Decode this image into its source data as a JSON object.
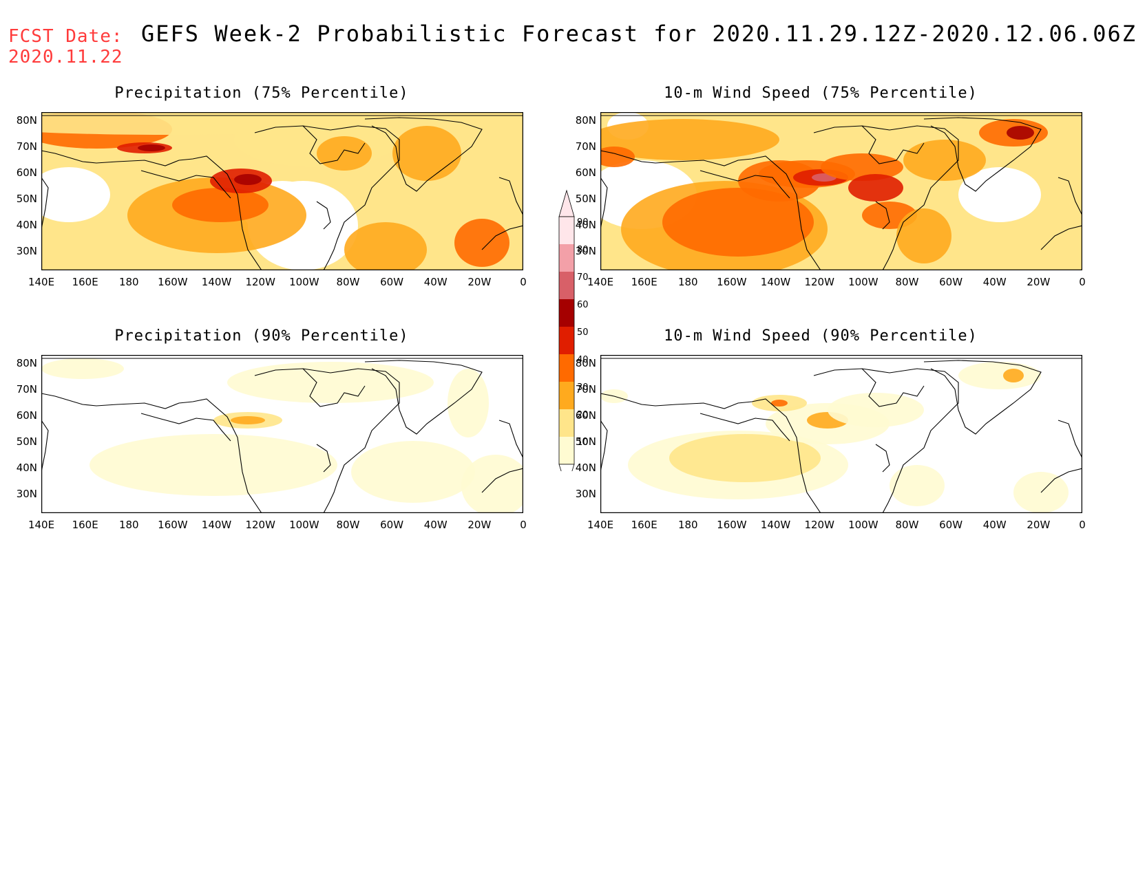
{
  "header": {
    "fcst_label": "FCST Date:",
    "fcst_date": "2020.11.22",
    "title": "GEFS Week-2 Probabilistic Forecast for 2020.11.29.12Z-2020.12.06.06Z"
  },
  "colors": {
    "fcst_text": "#ff3b3b",
    "levels": [
      "#fffbd2",
      "#ffe58a",
      "#ffaa1e",
      "#ff6a00",
      "#e01e00",
      "#a50000",
      "#d86068",
      "#f3a0a8",
      "#ffe6ea"
    ]
  },
  "axes": {
    "y_ticks": [
      "80N",
      "70N",
      "60N",
      "50N",
      "40N",
      "30N"
    ],
    "x_ticks": [
      "140E",
      "160E",
      "180",
      "160W",
      "140W",
      "120W",
      "100W",
      "80W",
      "60W",
      "40W",
      "20W",
      "0"
    ]
  },
  "panels": [
    {
      "id": "precip75",
      "title": "Precipitation (75% Percentile)"
    },
    {
      "id": "wind75",
      "title": "10-m Wind Speed (75% Percentile)"
    },
    {
      "id": "precip90",
      "title": "Precipitation (90% Percentile)"
    },
    {
      "id": "wind90",
      "title": "10-m Wind Speed (90% Percentile)"
    }
  ],
  "colorbar": {
    "labels": [
      "90",
      "80",
      "70",
      "60",
      "50",
      "40",
      "30",
      "20",
      "10"
    ]
  }
}
